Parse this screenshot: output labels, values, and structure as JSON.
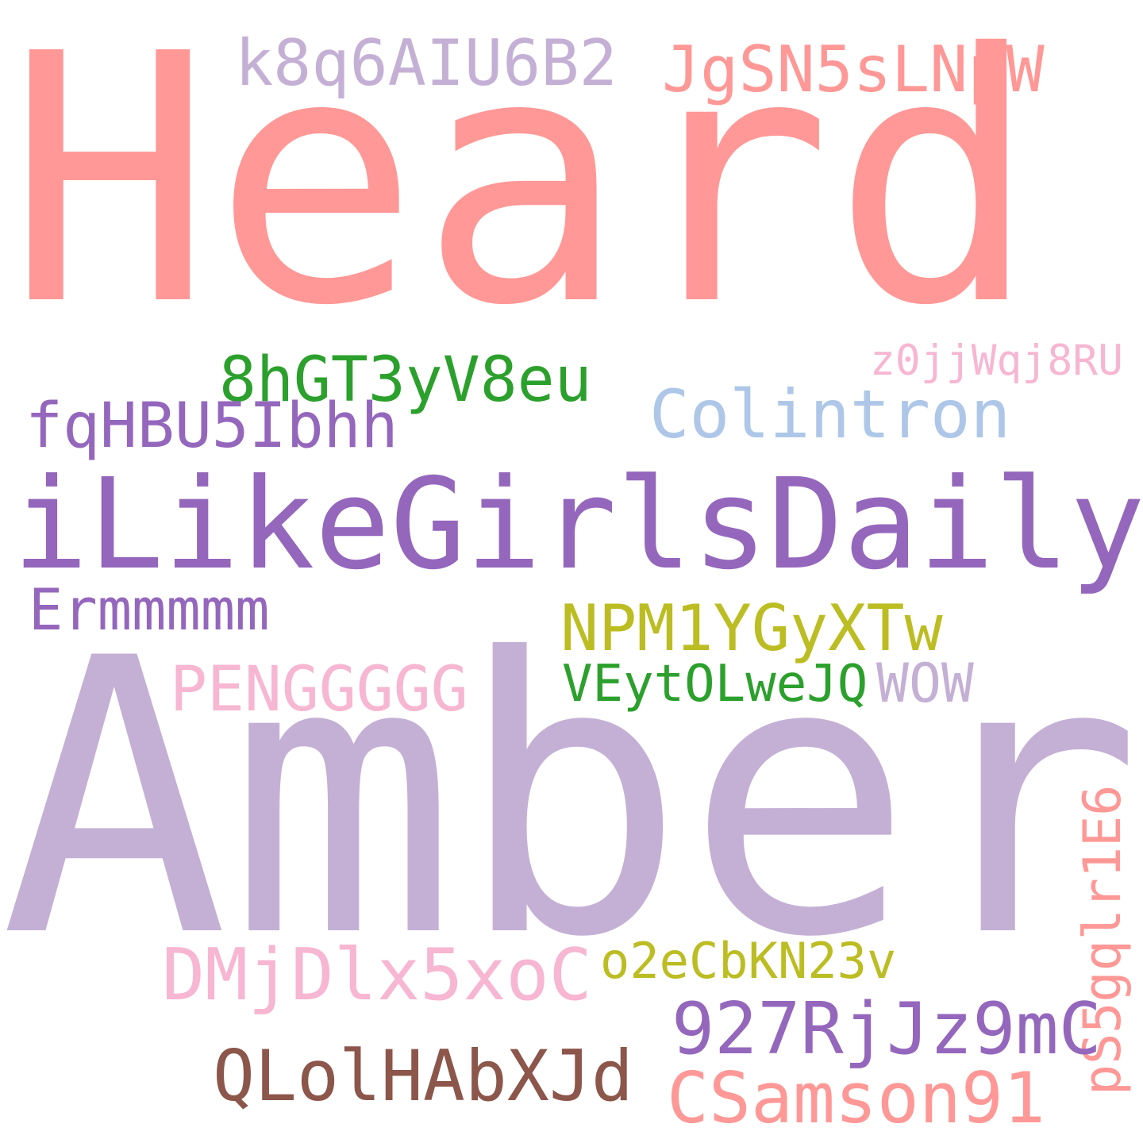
{
  "words": [
    {
      "text": "Heard",
      "color": "#ff9896"
    },
    {
      "text": "k8q6AIU6B2",
      "color": "#c5b0d5"
    },
    {
      "text": "JgSN5sLNpW",
      "color": "#ff9896"
    },
    {
      "text": "z0jjWqj8RU",
      "color": "#f7b6d2"
    },
    {
      "text": "8hGT3yV8eu",
      "color": "#2ca02c"
    },
    {
      "text": "fqHBU5Ibhh",
      "color": "#9467bd"
    },
    {
      "text": "Colintron",
      "color": "#aec7e8"
    },
    {
      "text": "iLikeGirlsDaily",
      "color": "#9467bd"
    },
    {
      "text": "Ermmmmm",
      "color": "#9467bd"
    },
    {
      "text": "NPM1YGyXTw",
      "color": "#bcbd22"
    },
    {
      "text": "PENGGGGG",
      "color": "#f7b6d2"
    },
    {
      "text": "VEytOLweJQ",
      "color": "#2ca02c"
    },
    {
      "text": "WOW",
      "color": "#c5b0d5"
    },
    {
      "text": "Amber",
      "color": "#c5b0d5"
    },
    {
      "text": "pS5gqlr1E6",
      "color": "#ff9896"
    },
    {
      "text": "DMjDlx5xoC",
      "color": "#f7b6d2"
    },
    {
      "text": "o2eCbKN23v",
      "color": "#bcbd22"
    },
    {
      "text": "927RjJz9mC",
      "color": "#9467bd"
    },
    {
      "text": "QLolHAbXJd",
      "color": "#8c564b"
    },
    {
      "text": "CSamson91",
      "color": "#ff9896"
    }
  ]
}
